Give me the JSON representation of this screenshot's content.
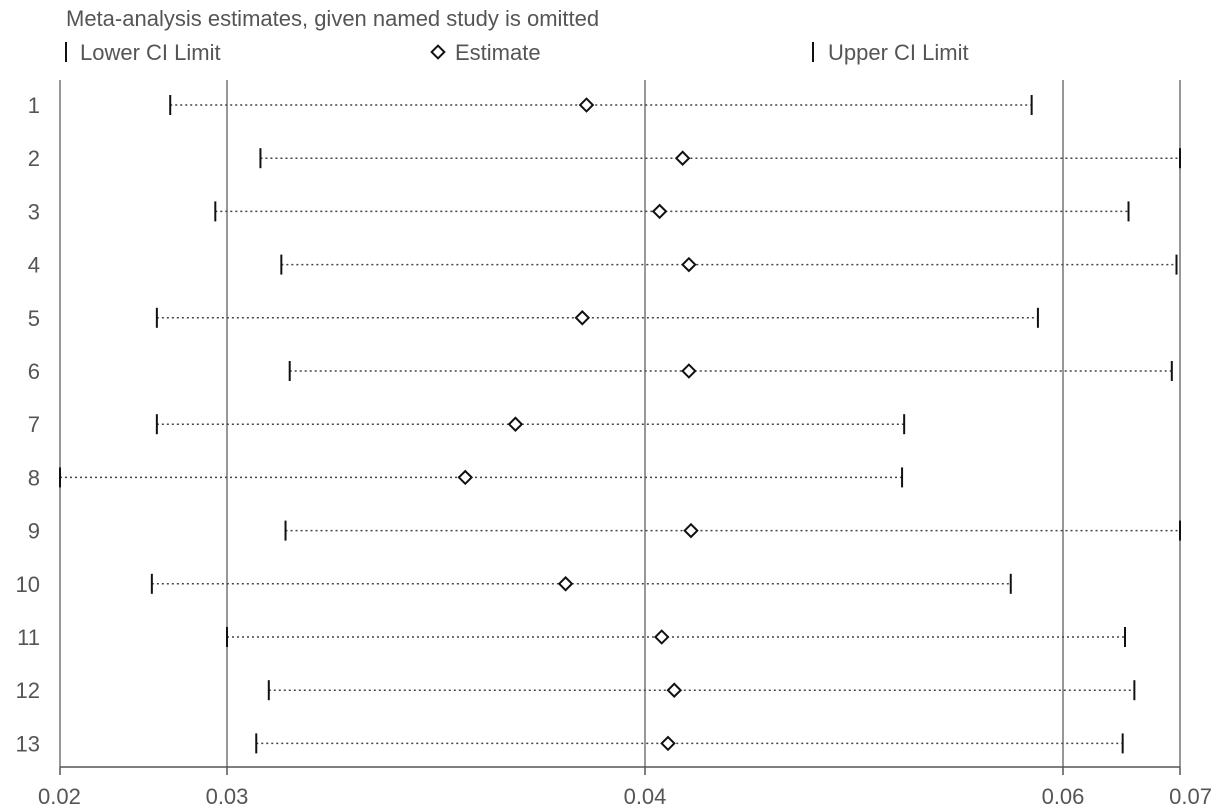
{
  "chart_data": {
    "type": "scatter",
    "title": "Meta-analysis estimates, given named study is omitted",
    "legend": {
      "placement": "top",
      "entries": [
        {
          "label": "Lower CI Limit",
          "marker": "tick"
        },
        {
          "label": "Estimate",
          "marker": "diamond"
        },
        {
          "label": "Upper CI Limit",
          "marker": "tick"
        }
      ]
    },
    "x_axis": {
      "ticks": [
        0.02,
        0.03,
        0.04,
        0.06,
        0.07
      ],
      "tick_labels": [
        "0.02",
        "0.03",
        "0.04",
        "0.06",
        "0.07"
      ],
      "range": [
        0.02,
        0.07
      ],
      "scale": "nonlinear"
    },
    "gridlines_x": [
      0.03,
      0.04,
      0.06
    ],
    "studies": [
      {
        "label": "1",
        "lower": 0.0266,
        "estimate": 0.0386,
        "upper": 0.0585
      },
      {
        "label": "2",
        "lower": 0.0308,
        "estimate": 0.0418,
        "upper": 0.07
      },
      {
        "label": "3",
        "lower": 0.0293,
        "estimate": 0.0407,
        "upper": 0.0656
      },
      {
        "label": "4",
        "lower": 0.0313,
        "estimate": 0.0421,
        "upper": 0.0697
      },
      {
        "label": "5",
        "lower": 0.0258,
        "estimate": 0.0385,
        "upper": 0.0588
      },
      {
        "label": "6",
        "lower": 0.0315,
        "estimate": 0.0421,
        "upper": 0.0693
      },
      {
        "label": "7",
        "lower": 0.0258,
        "estimate": 0.0369,
        "upper": 0.0524
      },
      {
        "label": "8",
        "lower": 0.02,
        "estimate": 0.0357,
        "upper": 0.0523
      },
      {
        "label": "9",
        "lower": 0.0314,
        "estimate": 0.0422,
        "upper": 0.07
      },
      {
        "label": "10",
        "lower": 0.0255,
        "estimate": 0.0381,
        "upper": 0.0575
      },
      {
        "label": "11",
        "lower": 0.03,
        "estimate": 0.0408,
        "upper": 0.0653
      },
      {
        "label": "12",
        "lower": 0.031,
        "estimate": 0.0414,
        "upper": 0.0661
      },
      {
        "label": "13",
        "lower": 0.0307,
        "estimate": 0.0411,
        "upper": 0.0651
      }
    ]
  }
}
